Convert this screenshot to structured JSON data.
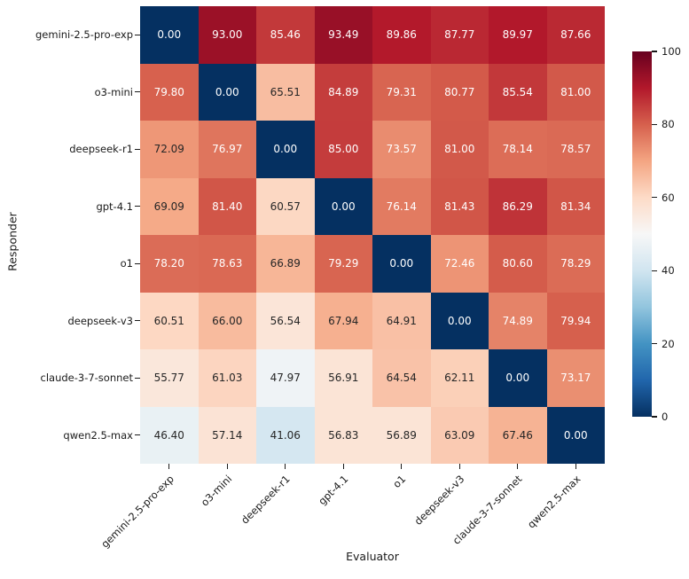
{
  "chart_data": {
    "type": "heatmap",
    "xlabel": "Evaluator",
    "ylabel": "Responder",
    "rows": [
      "gemini-2.5-pro-exp",
      "o3-mini",
      "deepseek-r1",
      "gpt-4.1",
      "o1",
      "deepseek-v3",
      "claude-3-7-sonnet",
      "qwen2.5-max"
    ],
    "columns": [
      "gemini-2.5-pro-exp",
      "o3-mini",
      "deepseek-r1",
      "gpt-4.1",
      "o1",
      "deepseek-v3",
      "claude-3-7-sonnet",
      "qwen2.5-max"
    ],
    "values": [
      [
        0.0,
        93.0,
        85.46,
        93.49,
        89.86,
        87.77,
        89.97,
        87.66
      ],
      [
        79.8,
        0.0,
        65.51,
        84.89,
        79.31,
        80.77,
        85.54,
        81.0
      ],
      [
        72.09,
        76.97,
        0.0,
        85.0,
        73.57,
        81.0,
        78.14,
        78.57
      ],
      [
        69.09,
        81.4,
        60.57,
        0.0,
        76.14,
        81.43,
        86.29,
        81.34
      ],
      [
        78.2,
        78.63,
        66.89,
        79.29,
        0.0,
        72.46,
        80.6,
        78.29
      ],
      [
        60.51,
        66.0,
        56.54,
        67.94,
        64.91,
        0.0,
        74.89,
        79.94
      ],
      [
        55.77,
        61.03,
        47.97,
        56.91,
        64.54,
        62.11,
        0.0,
        73.17
      ],
      [
        46.4,
        57.14,
        41.06,
        56.83,
        56.89,
        63.09,
        67.46,
        0.0
      ]
    ],
    "value_decimals": 2,
    "colormap": {
      "name": "RdBu_r",
      "stops": [
        "#053061",
        "#2166ac",
        "#4393c3",
        "#92c5de",
        "#d1e5f0",
        "#f7f7f7",
        "#fddbc7",
        "#f4a582",
        "#d6604d",
        "#b2182b",
        "#67001f"
      ]
    },
    "colorbar": {
      "min": 0,
      "max": 100,
      "ticks": [
        0,
        20,
        40,
        60,
        80,
        100
      ]
    },
    "annotation_colors": {
      "on_dark": "#ffffff",
      "on_light": "#262626"
    },
    "legend_position": "right",
    "grid": false
  }
}
